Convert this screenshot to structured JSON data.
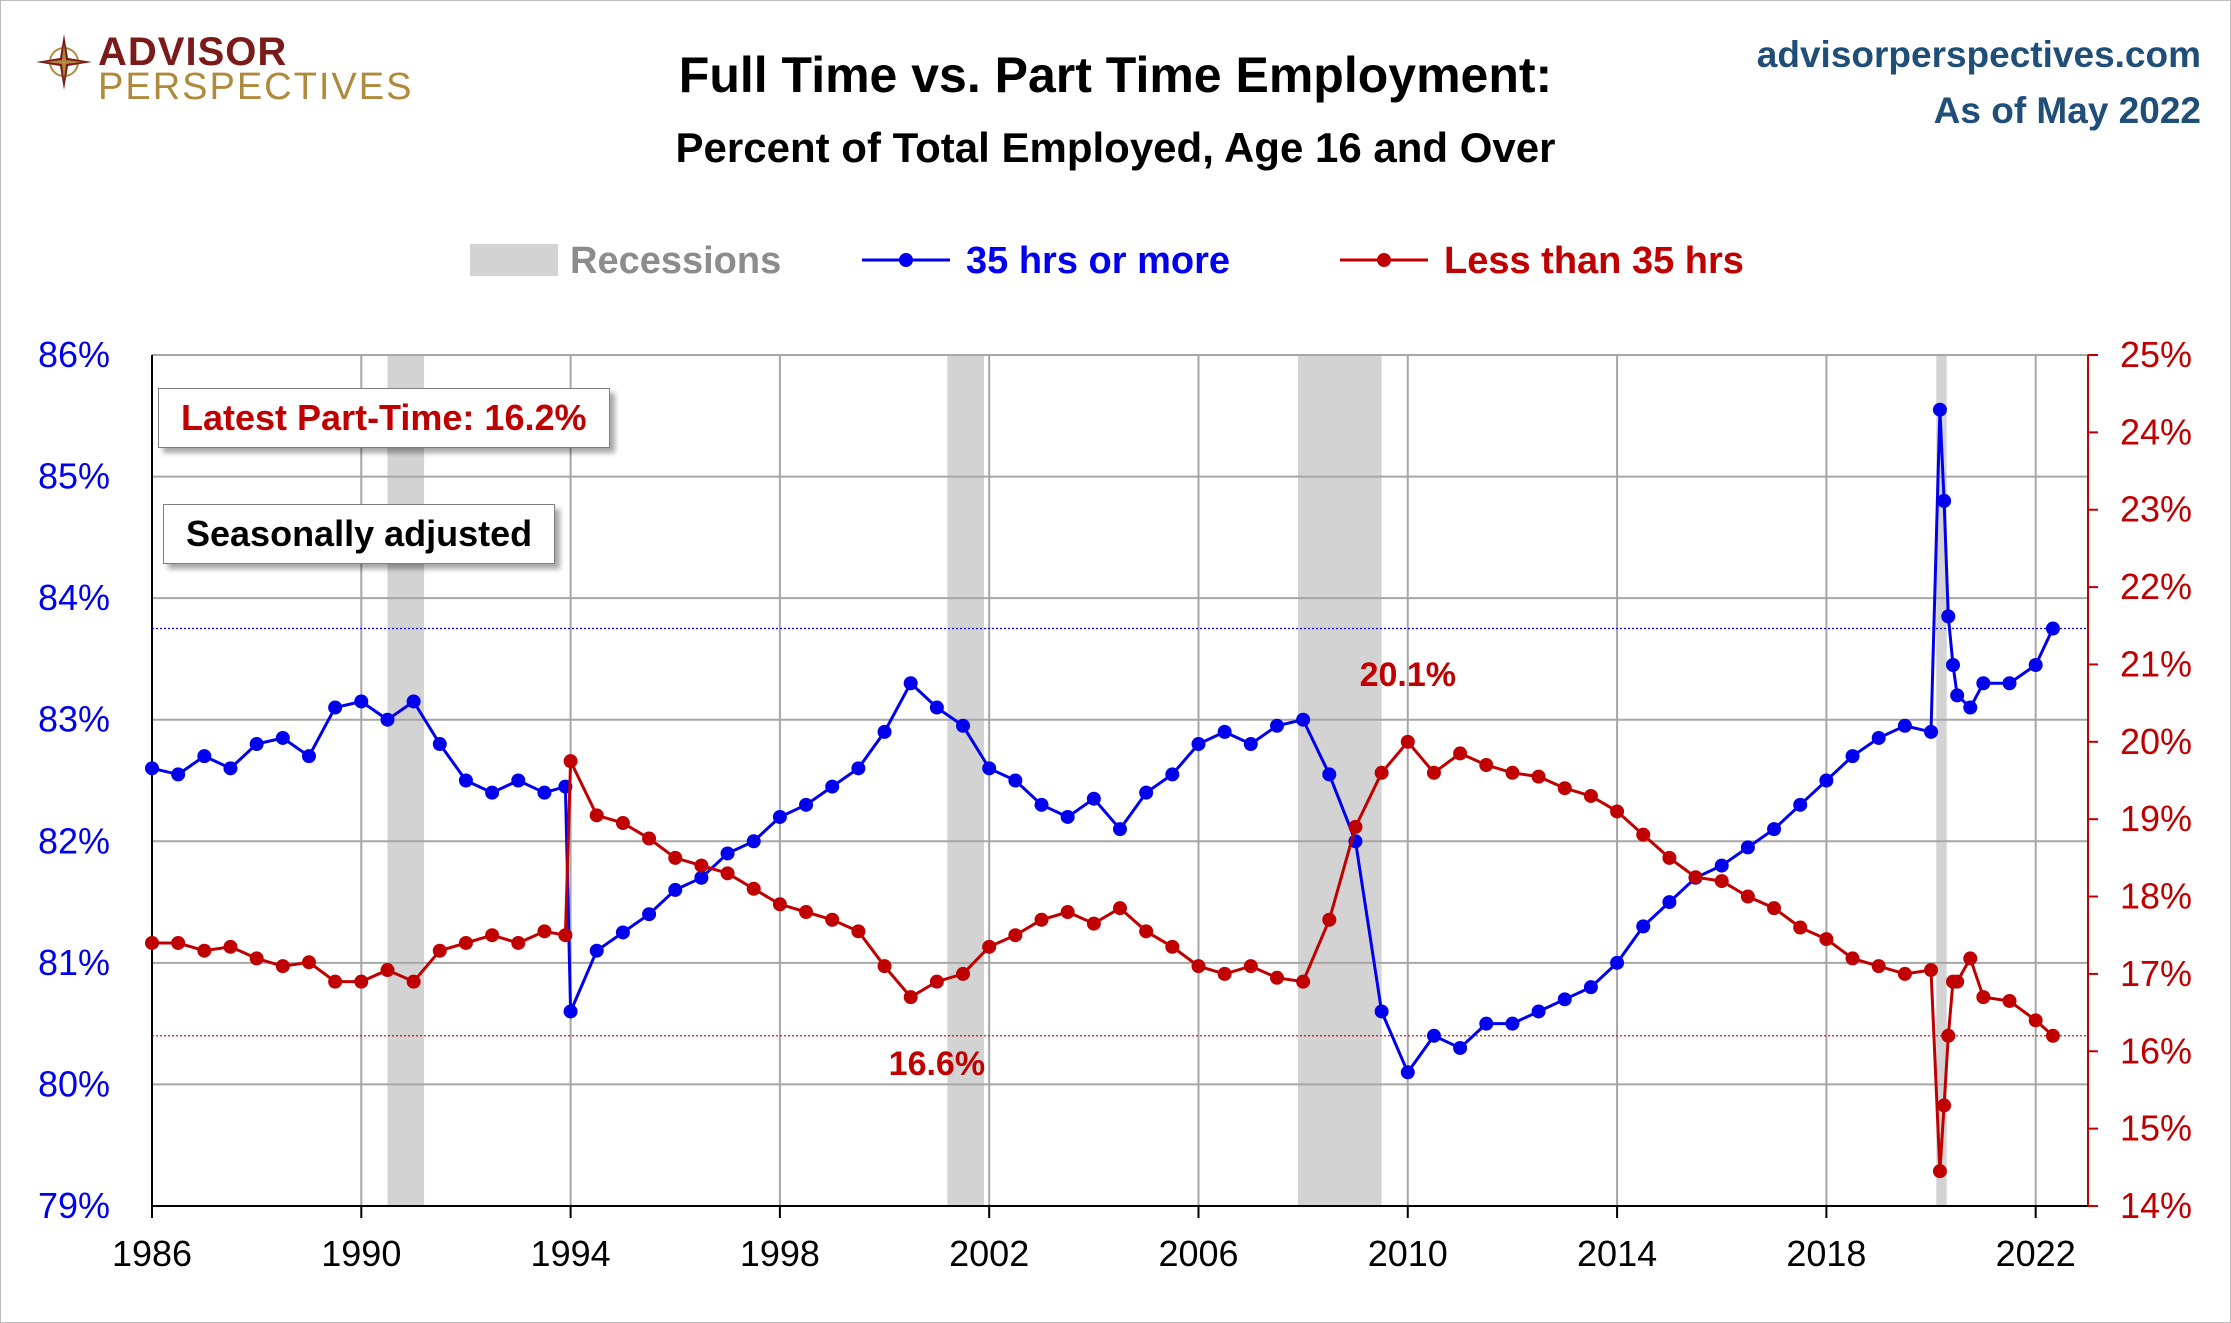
{
  "header": {
    "brand_line1": "ADVISOR",
    "brand_line2": "PERSPECTIVES",
    "title": "Full Time vs. Part Time Employment:",
    "subtitle": "Percent of Total Employed, Age 16 and Over",
    "site": "advisorperspectives.com",
    "as_of": "As of May 2022"
  },
  "callouts": {
    "latest": "Latest Part-Time: 16.2%",
    "seasonal": "Seasonally adjusted"
  },
  "colors": {
    "full_time": "#0000ee",
    "part_time": "#c00000",
    "recession": "#d3d3d3",
    "grid": "#a6a6a6"
  },
  "chart_data": {
    "type": "line",
    "legend": {
      "position": "top",
      "items": [
        "Recessions",
        "35 hrs or more",
        "Less than 35 hrs"
      ]
    },
    "x_ticks": [
      "1986",
      "1990",
      "1994",
      "1998",
      "2002",
      "2006",
      "2010",
      "2014",
      "2018",
      "2022"
    ],
    "xlim": [
      1986,
      2023
    ],
    "y_left": {
      "ticks": [
        "79%",
        "80%",
        "81%",
        "82%",
        "83%",
        "84%",
        "85%",
        "86%"
      ],
      "lim": [
        79,
        86
      ]
    },
    "y_right": {
      "ticks": [
        "14%",
        "15%",
        "16%",
        "17%",
        "18%",
        "19%",
        "20%",
        "21%",
        "22%",
        "23%",
        "24%",
        "25%"
      ],
      "lim": [
        14,
        25
      ]
    },
    "grid": true,
    "recessions": [
      [
        1990.5,
        1991.2
      ],
      [
        2001.2,
        2001.9
      ],
      [
        2007.9,
        2009.5
      ],
      [
        2020.1,
        2020.3
      ]
    ],
    "reference_line_left": 83.75,
    "reference_line_right": 16.2,
    "annotations": [
      {
        "text": "20.1%",
        "x": 2010,
        "y": 20.1,
        "axis": "right"
      },
      {
        "text": "16.6%",
        "x": 2001,
        "y": 16.6,
        "axis": "right"
      }
    ],
    "series": [
      {
        "name": "35 hrs or more",
        "axis": "left",
        "x": [
          1986.0,
          1986.5,
          1987.0,
          1987.5,
          1988.0,
          1988.5,
          1989.0,
          1989.5,
          1990.0,
          1990.5,
          1991.0,
          1991.5,
          1992.0,
          1992.5,
          1993.0,
          1993.5,
          1993.9,
          1994.0,
          1994.5,
          1995.0,
          1995.5,
          1996.0,
          1996.5,
          1997.0,
          1997.5,
          1998.0,
          1998.5,
          1999.0,
          1999.5,
          2000.0,
          2000.5,
          2001.0,
          2001.5,
          2002.0,
          2002.5,
          2003.0,
          2003.5,
          2004.0,
          2004.5,
          2005.0,
          2005.5,
          2006.0,
          2006.5,
          2007.0,
          2007.5,
          2008.0,
          2008.5,
          2009.0,
          2009.5,
          2010.0,
          2010.5,
          2011.0,
          2011.5,
          2012.0,
          2012.5,
          2013.0,
          2013.5,
          2014.0,
          2014.5,
          2015.0,
          2015.5,
          2016.0,
          2016.5,
          2017.0,
          2017.5,
          2018.0,
          2018.5,
          2019.0,
          2019.5,
          2020.0,
          2020.17,
          2020.25,
          2020.33,
          2020.42,
          2020.5,
          2020.75,
          2021.0,
          2021.5,
          2022.0,
          2022.33
        ],
        "values": [
          82.6,
          82.55,
          82.7,
          82.6,
          82.8,
          82.85,
          82.7,
          83.1,
          83.15,
          83.0,
          83.15,
          82.8,
          82.5,
          82.4,
          82.5,
          82.4,
          82.45,
          80.6,
          81.1,
          81.25,
          81.4,
          81.6,
          81.7,
          81.9,
          82.0,
          82.2,
          82.3,
          82.45,
          82.6,
          82.9,
          83.3,
          83.1,
          82.95,
          82.6,
          82.5,
          82.3,
          82.2,
          82.35,
          82.1,
          82.4,
          82.55,
          82.8,
          82.9,
          82.8,
          82.95,
          83.0,
          82.55,
          82.0,
          80.6,
          80.1,
          80.4,
          80.3,
          80.5,
          80.5,
          80.6,
          80.7,
          80.8,
          81.0,
          81.3,
          81.5,
          81.7,
          81.8,
          81.95,
          82.1,
          82.3,
          82.5,
          82.7,
          82.85,
          82.95,
          82.9,
          85.55,
          84.8,
          83.85,
          83.45,
          83.2,
          83.1,
          83.3,
          83.3,
          83.45,
          83.75
        ]
      },
      {
        "name": "Less than 35 hrs",
        "axis": "right",
        "x": [
          1986.0,
          1986.5,
          1987.0,
          1987.5,
          1988.0,
          1988.5,
          1989.0,
          1989.5,
          1990.0,
          1990.5,
          1991.0,
          1991.5,
          1992.0,
          1992.5,
          1993.0,
          1993.5,
          1993.9,
          1994.0,
          1994.5,
          1995.0,
          1995.5,
          1996.0,
          1996.5,
          1997.0,
          1997.5,
          1998.0,
          1998.5,
          1999.0,
          1999.5,
          2000.0,
          2000.5,
          2001.0,
          2001.5,
          2002.0,
          2002.5,
          2003.0,
          2003.5,
          2004.0,
          2004.5,
          2005.0,
          2005.5,
          2006.0,
          2006.5,
          2007.0,
          2007.5,
          2008.0,
          2008.5,
          2009.0,
          2009.5,
          2010.0,
          2010.5,
          2011.0,
          2011.5,
          2012.0,
          2012.5,
          2013.0,
          2013.5,
          2014.0,
          2014.5,
          2015.0,
          2015.5,
          2016.0,
          2016.5,
          2017.0,
          2017.5,
          2018.0,
          2018.5,
          2019.0,
          2019.5,
          2020.0,
          2020.17,
          2020.25,
          2020.33,
          2020.42,
          2020.5,
          2020.75,
          2021.0,
          2021.5,
          2022.0,
          2022.33
        ],
        "values": [
          17.4,
          17.4,
          17.3,
          17.35,
          17.2,
          17.1,
          17.15,
          16.9,
          16.9,
          17.05,
          16.9,
          17.3,
          17.4,
          17.5,
          17.4,
          17.55,
          17.5,
          19.75,
          19.05,
          18.95,
          18.75,
          18.5,
          18.4,
          18.3,
          18.1,
          17.9,
          17.8,
          17.7,
          17.55,
          17.1,
          16.7,
          16.9,
          17.0,
          17.35,
          17.5,
          17.7,
          17.8,
          17.65,
          17.85,
          17.55,
          17.35,
          17.1,
          17.0,
          17.1,
          16.95,
          16.9,
          17.7,
          18.9,
          19.6,
          20.0,
          19.6,
          19.85,
          19.7,
          19.6,
          19.55,
          19.4,
          19.3,
          19.1,
          18.8,
          18.5,
          18.25,
          18.2,
          18.0,
          17.85,
          17.6,
          17.45,
          17.2,
          17.1,
          17.0,
          17.05,
          14.45,
          15.3,
          16.2,
          16.9,
          16.9,
          17.2,
          16.7,
          16.65,
          16.4,
          16.2
        ]
      }
    ]
  }
}
